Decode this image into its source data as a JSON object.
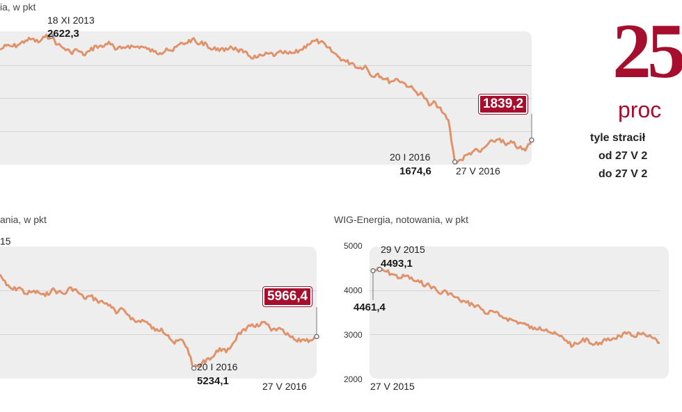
{
  "colors": {
    "line": "#e0926a",
    "accent": "#a50f2d",
    "panel": "#eeeeee",
    "marker": "#777777"
  },
  "chart_data": [
    {
      "type": "line",
      "subtitle": "ia, w pkt",
      "series": [
        {
          "name": "index",
          "values": [
            2520,
            2550,
            2545,
            2560,
            2590,
            2600,
            2575,
            2615,
            2622.3,
            2560,
            2530,
            2500,
            2520,
            2480,
            2510,
            2550,
            2540,
            2580,
            2520,
            2530,
            2550,
            2540,
            2545,
            2525,
            2505,
            2495,
            2530,
            2510,
            2560,
            2570,
            2600,
            2560,
            2575,
            2520,
            2530,
            2510,
            2545,
            2520,
            2500,
            2470,
            2460,
            2475,
            2490,
            2480,
            2500,
            2490,
            2495,
            2520,
            2560,
            2585,
            2580,
            2540,
            2500,
            2460,
            2430,
            2420,
            2380,
            2400,
            2320,
            2340,
            2300,
            2280,
            2300,
            2270,
            2240,
            2200,
            2180,
            2100,
            2120,
            2050,
            1990,
            1674.6,
            1690,
            1730,
            1760,
            1750,
            1800,
            1830,
            1850,
            1800,
            1820,
            1780,
            1760,
            1839.2
          ]
        }
      ],
      "annotations": {
        "max": {
          "date": "18 XI 2013",
          "value": "2622,3"
        },
        "min": {
          "date": "20 I 2016",
          "value": "1674,6"
        },
        "end": {
          "date": "27 V 2016",
          "value": "1839,2"
        }
      }
    },
    {
      "type": "line",
      "subtitle": "ania, w pkt",
      "partial_date": "15",
      "series": [
        {
          "name": "index",
          "values": [
            7400,
            7150,
            7050,
            7100,
            6950,
            7000,
            6980,
            6900,
            7050,
            7000,
            6950,
            7100,
            7000,
            6850,
            6900,
            6800,
            6750,
            6700,
            6500,
            6600,
            6450,
            6300,
            6350,
            6250,
            6100,
            6150,
            6000,
            5800,
            5900,
            5700,
            5234.1,
            5300,
            5450,
            5500,
            5700,
            5600,
            5800,
            6050,
            6100,
            6250,
            6200,
            6300,
            6100,
            6150,
            6050,
            5950,
            5850,
            5900,
            5880,
            5966.4
          ]
        }
      ],
      "annotations": {
        "min": {
          "date": "20 I 2016",
          "value": "5234,1"
        },
        "end": {
          "date": "27 V 2016",
          "value": "5966,4"
        }
      }
    },
    {
      "type": "line",
      "subtitle": "WIG-Energia, notowania, w pkt",
      "yticks": [
        "5000",
        "4000",
        "3000",
        "2000"
      ],
      "ylim": [
        2000,
        5000
      ],
      "series": [
        {
          "name": "WIG-Energia",
          "values": [
            4461.4,
            4493.1,
            4440,
            4380,
            4300,
            4350,
            4250,
            4200,
            4150,
            4100,
            3950,
            4000,
            3900,
            3800,
            3750,
            3700,
            3650,
            3500,
            3550,
            3450,
            3400,
            3350,
            3300,
            3250,
            3150,
            3200,
            3150,
            3050,
            3000,
            2900,
            2780,
            2850,
            2950,
            2800,
            2850,
            2900,
            2950,
            3000,
            3050,
            3000,
            3050,
            3000,
            2950,
            2850
          ]
        }
      ],
      "annotations": {
        "start": {
          "date": "27 V 2015",
          "value": "4461,4"
        },
        "max": {
          "date": "29 V 2015",
          "value": "4493,1"
        }
      }
    }
  ],
  "big_number": "25",
  "unit_text": "proc",
  "caption_lines": [
    "tyle stracił",
    "od 27 V 2",
    "do 27 V 2"
  ]
}
